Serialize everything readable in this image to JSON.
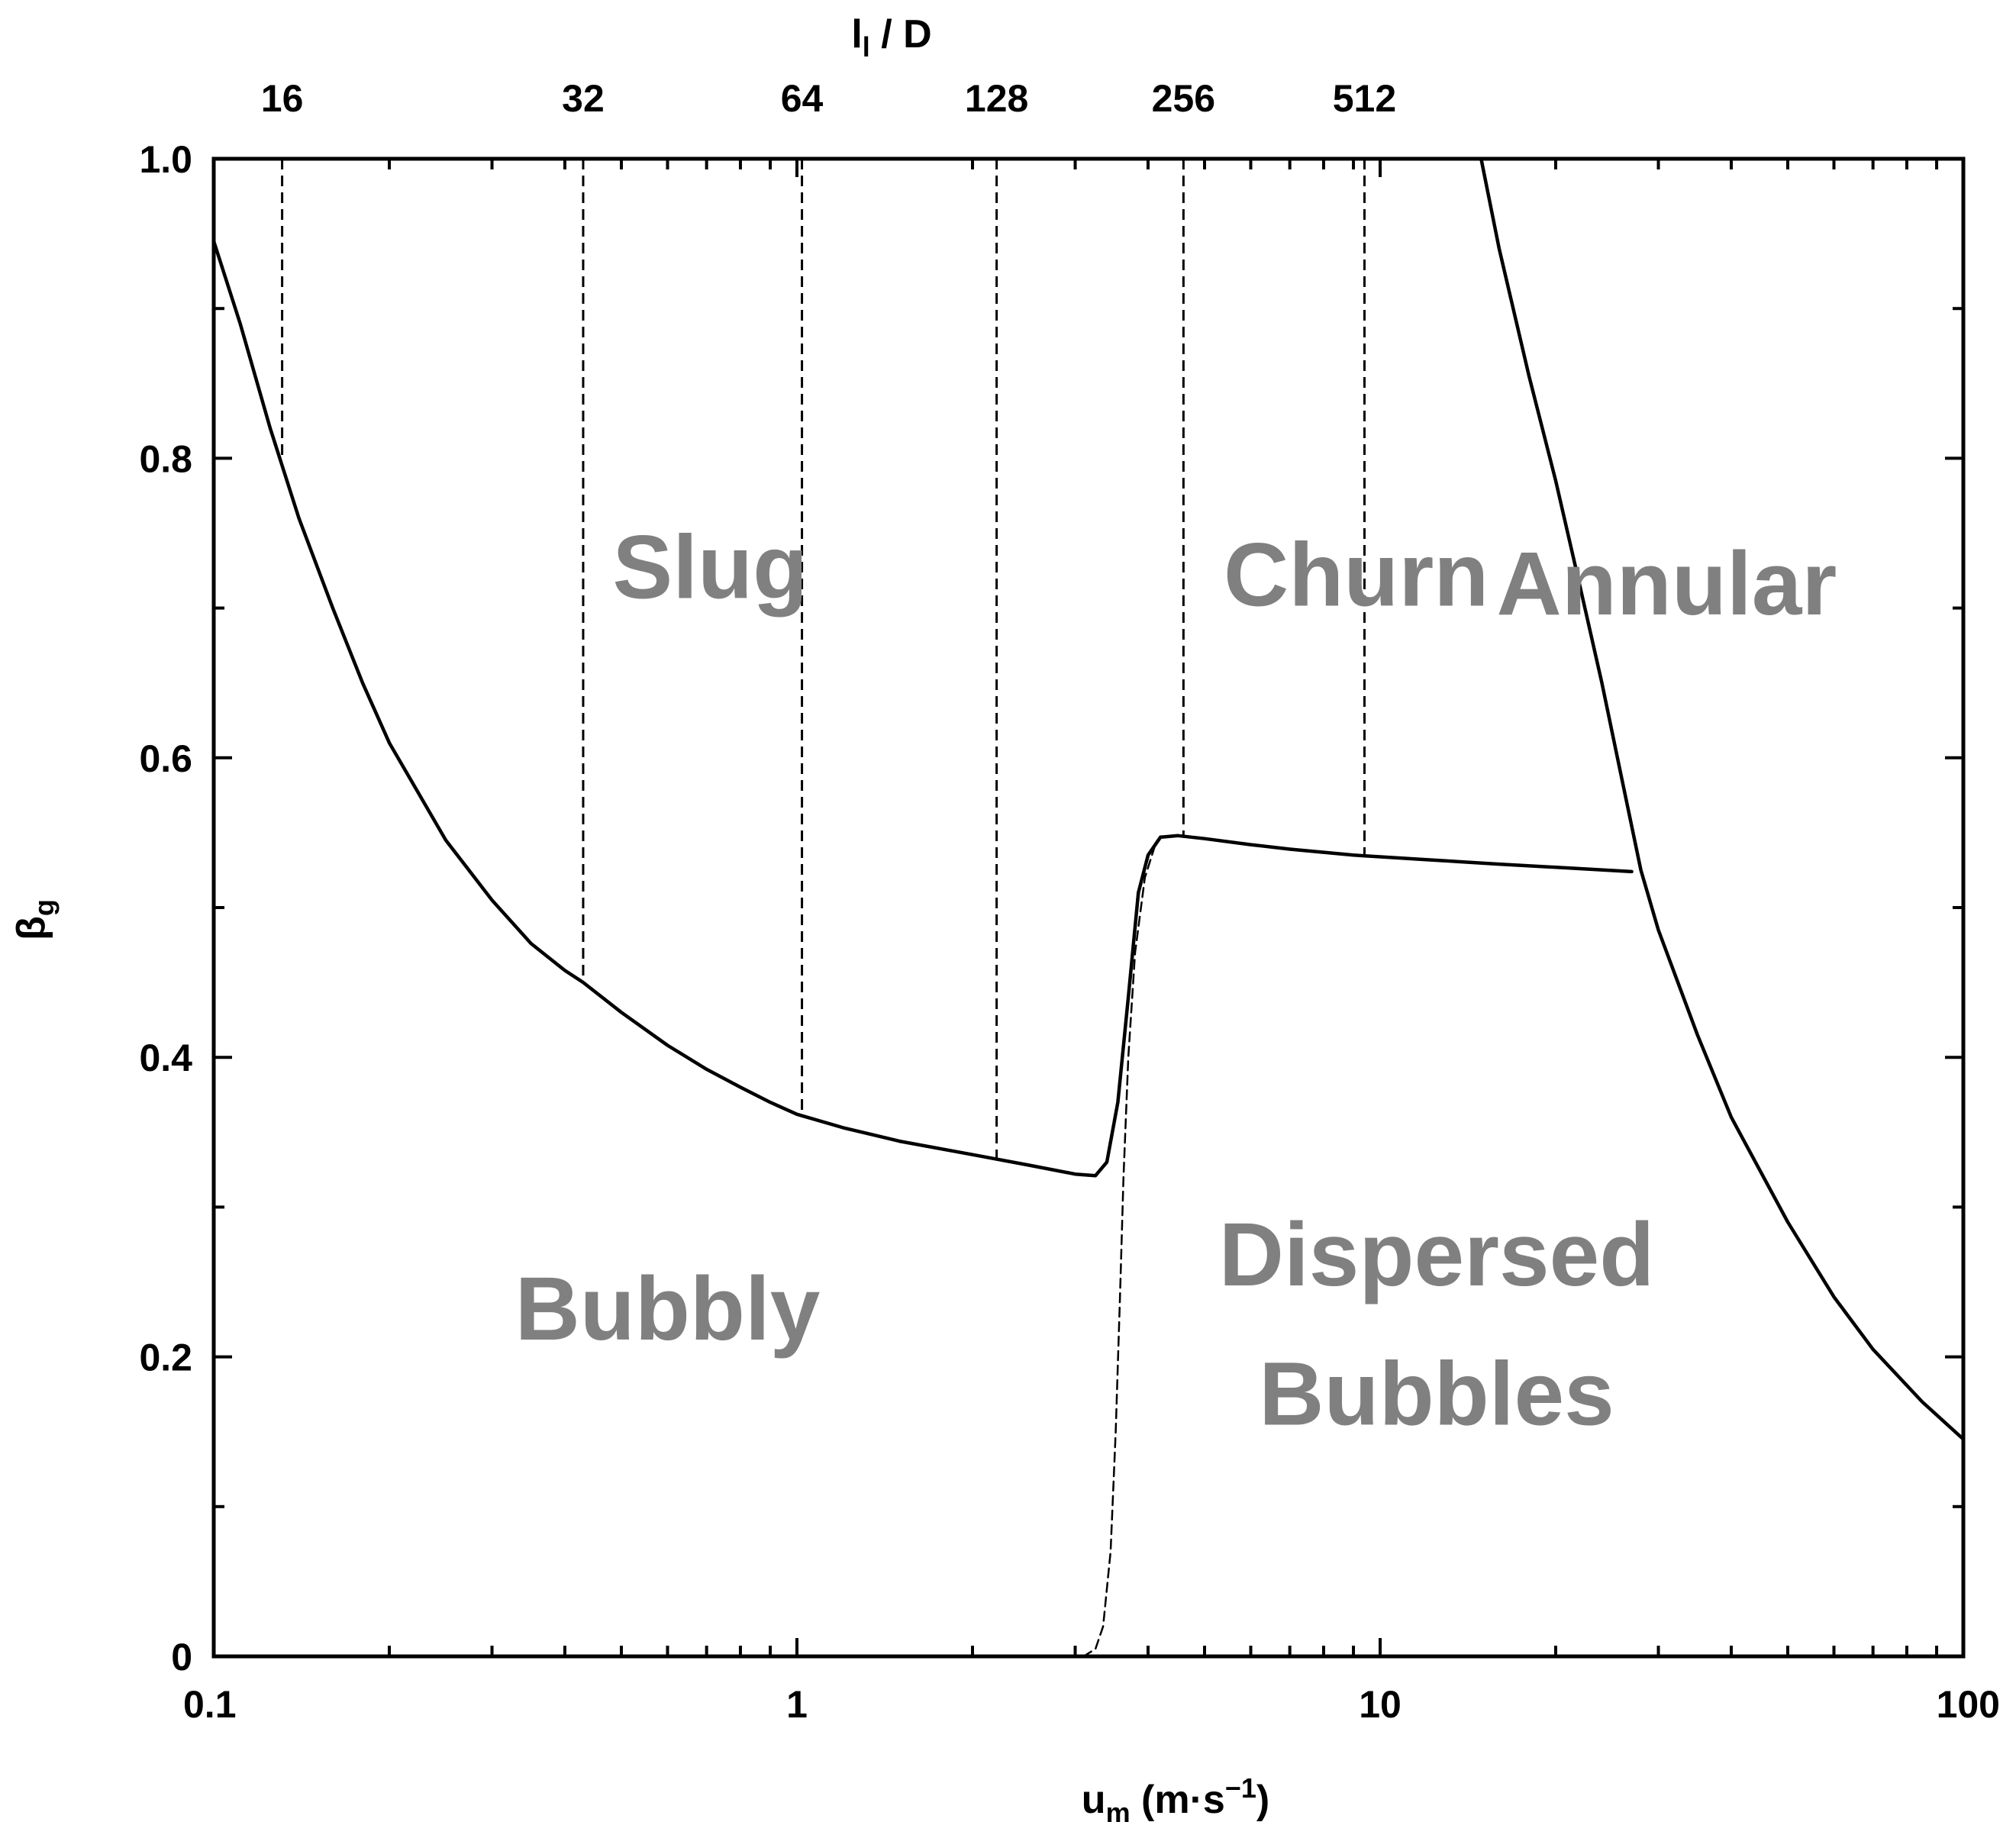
{
  "chart_data": {
    "type": "line",
    "x_scale": "log",
    "xlim": [
      0.1,
      100
    ],
    "ylim": [
      0,
      1.0
    ],
    "grid": false,
    "xlabel": {
      "main": "u",
      "sub": "m",
      "units": " (m·s",
      "exp": "−1",
      "close": ")"
    },
    "ylabel": {
      "main": "β",
      "sub": "g"
    },
    "toplabel": {
      "main": "l",
      "sub": "l",
      "rest": " / D"
    },
    "x_ticks": [
      {
        "value": 0.1,
        "label": "0.1"
      },
      {
        "value": 1,
        "label": "1"
      },
      {
        "value": 10,
        "label": "10"
      },
      {
        "value": 100,
        "label": "100"
      }
    ],
    "y_ticks": [
      {
        "value": 0,
        "label": "0"
      },
      {
        "value": 0.2,
        "label": "0.2"
      },
      {
        "value": 0.4,
        "label": "0.4"
      },
      {
        "value": 0.6,
        "label": "0.6"
      },
      {
        "value": 0.8,
        "label": "0.8"
      },
      {
        "value": 1.0,
        "label": "1.0"
      }
    ],
    "y_minor_ticks": [
      0.1,
      0.3,
      0.5,
      0.7,
      0.9
    ],
    "top_ticks": [
      {
        "label": "16",
        "x": 0.131,
        "y_bottom": 0.8
      },
      {
        "label": "32",
        "x": 0.43,
        "y_bottom": 0.452
      },
      {
        "label": "64",
        "x": 1.02,
        "y_bottom": 0.362
      },
      {
        "label": "128",
        "x": 2.2,
        "y_bottom": 0.332
      },
      {
        "label": "256",
        "x": 4.6,
        "y_bottom": 0.548
      },
      {
        "label": "512",
        "x": 9.4,
        "y_bottom": 0.535
      }
    ],
    "series": [
      {
        "style": "solid",
        "points": [
          [
            0.1,
            0.945
          ],
          [
            0.111,
            0.89
          ],
          [
            0.125,
            0.82
          ],
          [
            0.14,
            0.76
          ],
          [
            0.16,
            0.7
          ],
          [
            0.18,
            0.65
          ],
          [
            0.2,
            0.61
          ],
          [
            0.25,
            0.545
          ],
          [
            0.3,
            0.505
          ],
          [
            0.35,
            0.476
          ],
          [
            0.4,
            0.458
          ],
          [
            0.43,
            0.45
          ],
          [
            0.5,
            0.43
          ],
          [
            0.6,
            0.408
          ],
          [
            0.7,
            0.392
          ],
          [
            0.8,
            0.38
          ],
          [
            0.9,
            0.37
          ],
          [
            1.0,
            0.362
          ],
          [
            1.2,
            0.353
          ],
          [
            1.5,
            0.344
          ],
          [
            2.0,
            0.335
          ],
          [
            2.5,
            0.328
          ],
          [
            3.0,
            0.322
          ],
          [
            3.25,
            0.321
          ],
          [
            3.4,
            0.33
          ],
          [
            3.55,
            0.37
          ],
          [
            3.7,
            0.44
          ],
          [
            3.85,
            0.51
          ],
          [
            4.0,
            0.535
          ],
          [
            4.2,
            0.547
          ],
          [
            4.5,
            0.548
          ],
          [
            5.0,
            0.546
          ],
          [
            6.0,
            0.542
          ],
          [
            7.0,
            0.539
          ],
          [
            9.0,
            0.535
          ],
          [
            12.0,
            0.532
          ],
          [
            16.0,
            0.529
          ],
          [
            22.0,
            0.526
          ],
          [
            27.0,
            0.524
          ]
        ]
      },
      {
        "style": "solid",
        "points": [
          [
            14.9,
            1.0
          ],
          [
            16.0,
            0.94
          ],
          [
            18.0,
            0.855
          ],
          [
            20.0,
            0.785
          ],
          [
            22.0,
            0.715
          ],
          [
            24.0,
            0.65
          ],
          [
            26.0,
            0.585
          ],
          [
            28.0,
            0.525
          ],
          [
            30.0,
            0.485
          ],
          [
            35.0,
            0.415
          ],
          [
            40.0,
            0.36
          ],
          [
            50.0,
            0.29
          ],
          [
            60.0,
            0.24
          ],
          [
            70.0,
            0.205
          ],
          [
            85.0,
            0.17
          ],
          [
            100.0,
            0.145
          ]
        ]
      },
      {
        "style": "dashed",
        "points": [
          [
            3.1,
            0.0
          ],
          [
            3.25,
            0.005
          ],
          [
            3.35,
            0.02
          ],
          [
            3.45,
            0.07
          ],
          [
            3.52,
            0.15
          ],
          [
            3.58,
            0.24
          ],
          [
            3.63,
            0.32
          ],
          [
            3.7,
            0.4
          ],
          [
            3.8,
            0.47
          ],
          [
            3.95,
            0.52
          ],
          [
            4.1,
            0.54
          ]
        ]
      }
    ],
    "annotations": [
      {
        "text": "Slug",
        "x": 0.71,
        "y": 0.727,
        "color": "#808080"
      },
      {
        "text": "Churn",
        "x": 9.1,
        "y": 0.722,
        "color": "#808080"
      },
      {
        "text": "Annular",
        "x": 31.0,
        "y": 0.716,
        "color": "#808080"
      },
      {
        "text": "Bubbly",
        "x": 0.6,
        "y": 0.232,
        "color": "#808080"
      },
      {
        "text": "Dispersed",
        "x": 12.5,
        "y": 0.268,
        "color": "#808080"
      },
      {
        "text": "Bubbles",
        "x": 12.5,
        "y": 0.175,
        "color": "#808080"
      }
    ]
  }
}
